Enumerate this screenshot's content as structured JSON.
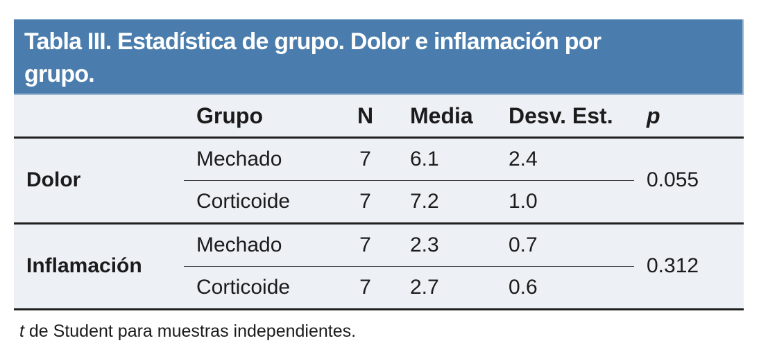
{
  "title": {
    "line1": "Tabla III. Estadística de grupo. Dolor e inflamación por",
    "line2": "grupo.",
    "full": "Tabla III. Estadística de grupo. Dolor e inflamación por grupo."
  },
  "columns": {
    "grupo": "Grupo",
    "n": "N",
    "media": "Media",
    "desv": "Desv. Est.",
    "p": "p"
  },
  "sections": [
    {
      "label": "Dolor",
      "p": "0.055",
      "rows": [
        {
          "grupo": "Mechado",
          "n": "7",
          "media": "6.1",
          "desv": "2.4"
        },
        {
          "grupo": "Corticoide",
          "n": "7",
          "media": "7.2",
          "desv": "1.0"
        }
      ]
    },
    {
      "label": "Inflamación",
      "p": "0.312",
      "rows": [
        {
          "grupo": "Mechado",
          "n": "7",
          "media": "2.3",
          "desv": "0.7"
        },
        {
          "grupo": "Corticoide",
          "n": "7",
          "media": "2.7",
          "desv": "0.6"
        }
      ]
    }
  ],
  "footnote": {
    "symbol": "t",
    "text": "de Student para muestras independientes."
  },
  "colors": {
    "title_band": "#4a7dad",
    "title_band_edge": "#9cb6d0",
    "title_text": "#ffffff",
    "table_background": "#edf0f5",
    "thick_rule": "#1f1f1f",
    "thin_rule": "#3f3f3f",
    "text": "#1b1b1b",
    "page_background": "#ffffff"
  }
}
